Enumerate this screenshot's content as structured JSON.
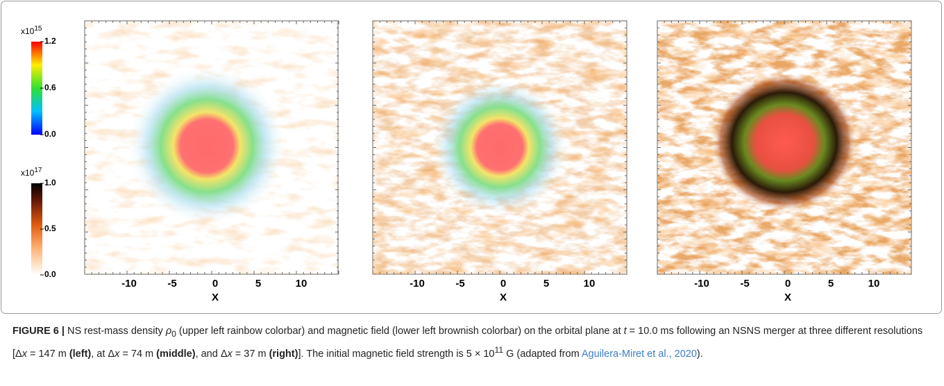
{
  "colorbars": [
    {
      "multiplier": "x10",
      "exponent": "15",
      "ticks": [
        "1.2",
        "0.6",
        "0.0"
      ]
    },
    {
      "multiplier": "x10",
      "exponent": "17",
      "ticks": [
        "1.0",
        "0.5",
        "0.0"
      ]
    }
  ],
  "panels": [
    {
      "xticks": [
        "-10",
        "-5",
        "0",
        "5",
        "10"
      ],
      "xlabel": "X"
    },
    {
      "xticks": [
        "-10",
        "-5",
        "0",
        "5",
        "10"
      ],
      "xlabel": "X"
    },
    {
      "xticks": [
        "-10",
        "-5",
        "0",
        "5",
        "10"
      ],
      "xlabel": "X"
    }
  ],
  "caption": [
    "FIGURE 6 |",
    " NS rest-mass density ",
    "ρ",
    "0",
    " (upper left rainbow colorbar) and magnetic field (lower left brownish colorbar) on the orbital plane at ",
    "t",
    " = 10.0 ms following an NSNS merger at three different resolutions [Δ",
    "x",
    " = 147 m ",
    "(left)",
    ", at Δ",
    "x",
    " = 74 m ",
    "(middle)",
    ", and Δ",
    "x",
    " = 37 m ",
    "(right)",
    "]. The initial magnetic field strength is 5 × 10",
    "11",
    " G (adapted from ",
    "Aguilera-Miret et al., 2020",
    ")."
  ]
}
